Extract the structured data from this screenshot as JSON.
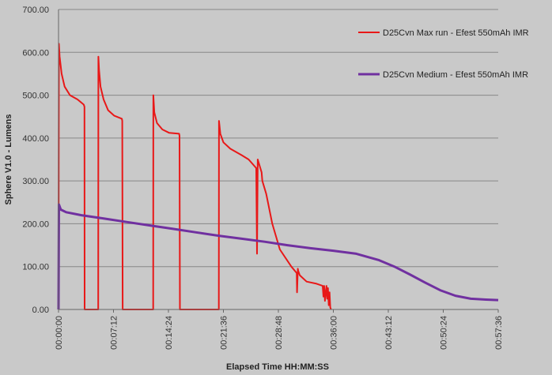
{
  "chart_data": {
    "type": "line",
    "title": "",
    "xlabel": "Elapsed Time HH:MM:SS",
    "ylabel": "Sphere V1.0 - Lumens",
    "ylim": [
      0,
      700
    ],
    "yticks": [
      "0.00",
      "100.00",
      "200.00",
      "300.00",
      "400.00",
      "500.00",
      "600.00",
      "700.00"
    ],
    "xlim_minutes": [
      0,
      57.6
    ],
    "xticks": [
      "00:00:00",
      "00:07:12",
      "00:14:24",
      "00:21:36",
      "00:28:48",
      "00:36:00",
      "00:43:12",
      "00:50:24",
      "00:57:36"
    ],
    "grid": "horizontal",
    "legend_position": "top-right",
    "colors": {
      "max_run": "#e81818",
      "medium": "#7030a0",
      "background": "#c9c9c9",
      "grid": "#888888"
    },
    "series": [
      {
        "name": "D25Cvn Max run - Efest 550mAh IMR",
        "x_minutes": [
          0,
          0.05,
          0.15,
          0.4,
          0.8,
          1.5,
          2.5,
          3.3,
          3.4,
          3.42,
          5.2,
          5.22,
          5.3,
          5.5,
          5.9,
          6.5,
          7.3,
          8.3,
          8.35,
          8.4,
          12.4,
          12.42,
          12.55,
          12.9,
          13.6,
          14.5,
          15.8,
          15.85,
          15.9,
          21.0,
          21.02,
          21.2,
          21.6,
          22.5,
          24.0,
          24.9,
          25.9,
          26.0,
          26.1,
          26.6,
          26.7,
          27.2,
          28.0,
          29.0,
          30.5,
          31.2,
          31.25,
          31.35,
          31.4,
          31.6,
          32.5,
          33.8,
          34.6,
          34.7,
          34.8,
          34.9,
          35.1,
          35.2,
          35.3,
          35.4,
          35.5,
          35.6,
          35.7
        ],
        "y": [
          0,
          620,
          590,
          550,
          520,
          500,
          490,
          478,
          473,
          0,
          0,
          590,
          560,
          520,
          490,
          465,
          452,
          445,
          440,
          0,
          0,
          500,
          460,
          435,
          420,
          412,
          410,
          405,
          0,
          0,
          440,
          410,
          390,
          375,
          360,
          350,
          330,
          130,
          350,
          320,
          300,
          270,
          200,
          140,
          100,
          85,
          40,
          95,
          90,
          80,
          65,
          60,
          55,
          30,
          55,
          20,
          55,
          25,
          50,
          10,
          40,
          5,
          0
        ]
      },
      {
        "name": "D25Cvn Medium - Efest 550mAh IMR",
        "x_minutes": [
          0,
          0.05,
          0.3,
          1,
          3,
          6,
          9,
          12,
          15,
          18,
          21,
          24,
          27,
          30,
          33,
          36,
          39,
          42,
          44,
          46,
          48,
          50,
          52,
          54,
          56,
          57.6
        ],
        "y": [
          0,
          245,
          233,
          227,
          220,
          212,
          204,
          196,
          188,
          180,
          172,
          165,
          158,
          150,
          143,
          137,
          130,
          115,
          100,
          82,
          63,
          45,
          32,
          25,
          23,
          22
        ]
      }
    ]
  }
}
